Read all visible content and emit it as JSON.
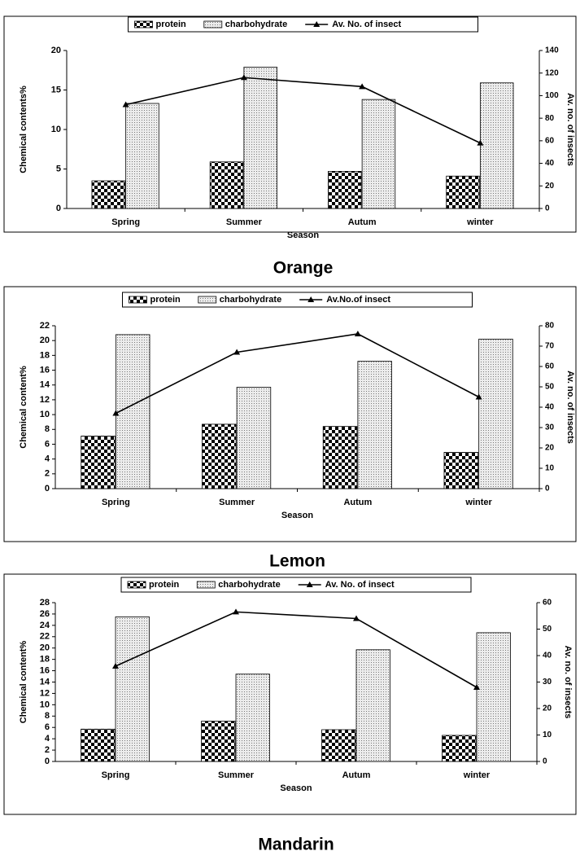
{
  "chart_data": [
    {
      "type": "bar_line",
      "caption": "Orange",
      "xlabel": "Season",
      "ylabel": "Chemical contents%",
      "y2label": "Av. no. of insects",
      "categories": [
        "Spring",
        "Summer",
        "Autum",
        "winter"
      ],
      "series": [
        {
          "name": "protein",
          "color": "#000000",
          "values": [
            3.5,
            5.9,
            4.7,
            4.1
          ]
        },
        {
          "name": "charbohydrate",
          "color": "#d9d9d9",
          "values": [
            13.3,
            17.9,
            13.8,
            15.9
          ]
        },
        {
          "name": "Av. No. of insect",
          "color": "#000000",
          "axis": "y2",
          "values": [
            92,
            116,
            108,
            58
          ]
        }
      ],
      "ylim": [
        0,
        20
      ],
      "yticks": [
        0,
        5,
        10,
        15,
        20
      ],
      "y2lim": [
        0,
        140
      ],
      "y2ticks": [
        0,
        20,
        40,
        60,
        80,
        100,
        120,
        140
      ]
    },
    {
      "type": "bar_line",
      "caption": "Lemon",
      "xlabel": "Season",
      "ylabel": "Chemical content%",
      "y2label": "Av. no. of insects",
      "categories": [
        "Spring",
        "Summer",
        "Autum",
        "winter"
      ],
      "series": [
        {
          "name": "protein",
          "color": "#000000",
          "values": [
            7.1,
            8.7,
            8.4,
            4.9
          ]
        },
        {
          "name": "charbohydrate",
          "color": "#d9d9d9",
          "values": [
            20.8,
            13.7,
            17.2,
            20.2
          ]
        },
        {
          "name": "Av.No.of insect",
          "color": "#000000",
          "axis": "y2",
          "values": [
            37,
            67,
            76,
            45
          ]
        }
      ],
      "ylim": [
        0,
        22
      ],
      "yticks": [
        0,
        2,
        4,
        6,
        8,
        10,
        12,
        14,
        16,
        18,
        20,
        22
      ],
      "y2lim": [
        0,
        80
      ],
      "y2ticks": [
        0,
        10,
        20,
        30,
        40,
        50,
        60,
        70,
        80
      ]
    },
    {
      "type": "bar_line",
      "caption": "Mandarin",
      "xlabel": "Season",
      "ylabel": "Chemical content%",
      "y2label": "Av. no. of insects",
      "categories": [
        "Spring",
        "Summer",
        "Autum",
        "winter"
      ],
      "series": [
        {
          "name": "protein",
          "color": "#000000",
          "values": [
            5.7,
            7.1,
            5.6,
            4.6
          ]
        },
        {
          "name": "charbohydrate",
          "color": "#d9d9d9",
          "values": [
            25.5,
            15.4,
            19.7,
            22.7
          ]
        },
        {
          "name": "Av. No. of insect",
          "color": "#000000",
          "axis": "y2",
          "values": [
            36,
            56.5,
            54,
            28
          ]
        }
      ],
      "ylim": [
        0,
        28
      ],
      "yticks": [
        0,
        2,
        4,
        6,
        8,
        10,
        12,
        14,
        16,
        18,
        20,
        22,
        24,
        26,
        28
      ],
      "y2lim": [
        0,
        60
      ],
      "y2ticks": [
        0,
        10,
        20,
        30,
        40,
        50,
        60
      ]
    }
  ]
}
